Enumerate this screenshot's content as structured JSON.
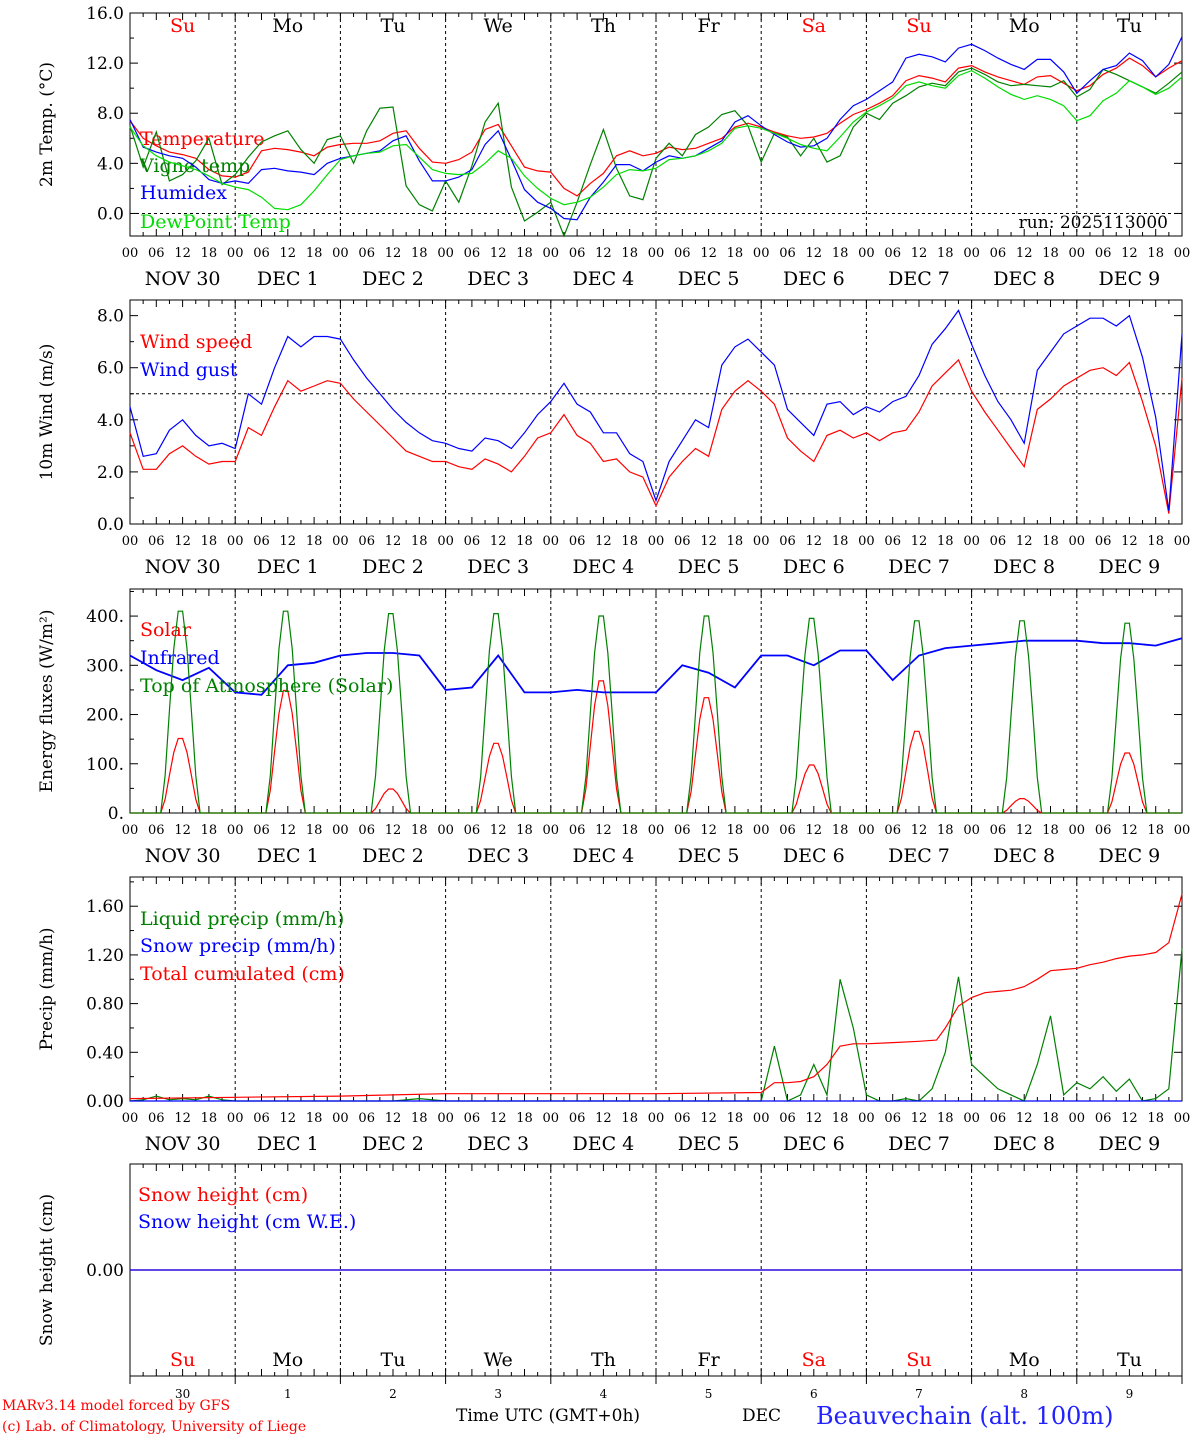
{
  "days": [
    "Su",
    "Mo",
    "Tu",
    "We",
    "Th",
    "Fr",
    "Sa",
    "Su",
    "Mo",
    "Tu"
  ],
  "weekend_days": [
    0,
    6,
    7
  ],
  "date_labels": [
    "NOV 30",
    "DEC  1",
    "DEC  2",
    "DEC  3",
    "DEC  4",
    "DEC  5",
    "DEC  6",
    "DEC  7",
    "DEC  8",
    "DEC  9"
  ],
  "hour_ticks": [
    "00",
    "06",
    "12",
    "18"
  ],
  "last_tick": "00",
  "colors": {
    "red": "#ff0000",
    "blue": "#0000ff",
    "green": "#008000",
    "lightgreen": "#00dd00",
    "axis": "#000000",
    "weekend": "#ff0000",
    "site": "#2222ff"
  },
  "footer": {
    "model": "MARv3.14 model forced by GFS",
    "lab": "(c) Lab. of Climatology, University of Liege",
    "time_axis": "Time UTC (GMT+0h)",
    "month": "DEC",
    "site": "Beauvechain (alt. 100m)",
    "bottom_dates": [
      "30",
      "1",
      "2",
      "3",
      "4",
      "5",
      "6",
      "7",
      "8",
      "9"
    ]
  },
  "chart_data": [
    {
      "id": "temp",
      "type": "line",
      "ylabel": "2m Temp. (°C)",
      "ylim": [
        -1.8,
        16.0
      ],
      "yticks": [
        0,
        4,
        8,
        12,
        16
      ],
      "ytick_labels": [
        "0.0",
        "4.0",
        "8.0",
        "12.0",
        "16.0"
      ],
      "ref_line": 0,
      "annotation": "run: 2025113000",
      "x_hours": [
        0,
        3,
        6,
        9,
        12,
        15,
        18,
        21,
        24,
        27,
        30,
        33,
        36,
        39,
        42,
        45,
        48,
        51,
        54,
        57,
        60,
        63,
        66,
        69,
        72,
        75,
        78,
        81,
        84,
        87,
        90,
        93,
        96,
        99,
        102,
        105,
        108,
        111,
        114,
        117,
        120,
        123,
        126,
        129,
        132,
        135,
        138,
        141,
        144,
        147,
        150,
        153,
        156,
        159,
        162,
        165,
        168,
        171,
        174,
        177,
        180,
        183,
        186,
        189,
        192,
        195,
        198,
        201,
        204,
        207,
        210,
        213,
        216,
        219,
        222,
        225,
        228,
        231,
        234,
        237,
        240
      ],
      "series": [
        {
          "name": "Temperature",
          "color": "red",
          "values": [
            7.4,
            6.0,
            5.4,
            4.9,
            4.7,
            4.4,
            3.5,
            3.0,
            2.9,
            3.3,
            5.0,
            5.2,
            5.1,
            4.9,
            4.6,
            5.3,
            5.5,
            5.6,
            5.6,
            5.8,
            6.4,
            6.6,
            5.2,
            4.1,
            4.0,
            4.3,
            4.9,
            6.7,
            7.1,
            5.4,
            3.7,
            3.4,
            3.3,
            2.0,
            1.4,
            2.4,
            3.2,
            4.6,
            5.0,
            4.6,
            4.8,
            5.3,
            5.1,
            5.2,
            5.6,
            6.0,
            6.9,
            7.2,
            6.9,
            6.5,
            6.2,
            6.0,
            6.1,
            6.4,
            7.2,
            7.9,
            8.3,
            8.8,
            9.4,
            10.6,
            11.0,
            10.8,
            10.5,
            11.6,
            11.8,
            11.3,
            10.9,
            10.6,
            10.3,
            10.9,
            11.0,
            10.4,
            9.8,
            10.2,
            11.1,
            11.6,
            12.4,
            11.8,
            10.9,
            11.6,
            12.2
          ]
        },
        {
          "name": "Vigne temp",
          "color": "green",
          "values": [
            7.0,
            3.7,
            6.5,
            2.6,
            3.1,
            4.2,
            6.0,
            2.3,
            3.1,
            4.5,
            5.7,
            6.2,
            6.6,
            5.1,
            4.0,
            5.9,
            6.2,
            4.0,
            6.6,
            8.4,
            8.5,
            2.2,
            0.7,
            0.2,
            2.6,
            0.9,
            3.8,
            7.3,
            8.8,
            2.1,
            -0.6,
            0.1,
            0.9,
            -2.0,
            0.9,
            3.9,
            6.7,
            3.6,
            1.4,
            1.1,
            4.4,
            5.6,
            4.6,
            6.3,
            6.9,
            7.9,
            8.2,
            7.0,
            4.1,
            6.4,
            6.1,
            4.6,
            6.0,
            4.1,
            4.6,
            6.9,
            8.0,
            7.5,
            8.8,
            9.4,
            10.1,
            10.4,
            10.2,
            11.3,
            11.6,
            11.1,
            10.5,
            10.2,
            10.3,
            10.2,
            10.1,
            10.6,
            9.3,
            9.9,
            11.5,
            11.1,
            10.6,
            10.1,
            9.6,
            10.4,
            11.3
          ]
        },
        {
          "name": "Humidex",
          "color": "blue",
          "values": [
            7.5,
            5.3,
            4.9,
            4.6,
            4.4,
            3.7,
            2.7,
            2.4,
            2.6,
            2.4,
            3.5,
            3.6,
            3.4,
            3.3,
            3.1,
            4.0,
            4.4,
            4.6,
            4.8,
            5.0,
            5.8,
            6.2,
            4.2,
            2.6,
            2.6,
            2.9,
            3.5,
            5.5,
            6.6,
            4.3,
            1.9,
            0.9,
            0.4,
            -0.4,
            -0.5,
            1.3,
            2.5,
            3.9,
            3.9,
            3.4,
            4.1,
            4.6,
            4.4,
            4.6,
            5.2,
            5.8,
            7.3,
            7.8,
            7.0,
            6.3,
            5.7,
            5.3,
            5.4,
            6.0,
            7.5,
            8.6,
            9.1,
            9.8,
            10.5,
            12.4,
            12.7,
            12.5,
            12.1,
            13.2,
            13.5,
            13.0,
            12.4,
            11.9,
            11.5,
            12.3,
            12.3,
            11.3,
            9.6,
            10.6,
            11.5,
            11.8,
            12.8,
            12.2,
            10.9,
            11.9,
            14.1
          ]
        },
        {
          "name": "DewPoint Temp",
          "color": "lightgreen",
          "values": [
            6.9,
            5.4,
            4.6,
            4.1,
            3.8,
            3.5,
            3.0,
            2.4,
            2.1,
            1.9,
            1.3,
            0.4,
            0.3,
            0.7,
            1.8,
            3.1,
            4.3,
            4.6,
            4.8,
            4.9,
            5.4,
            5.5,
            4.5,
            3.5,
            3.2,
            3.1,
            3.2,
            4.0,
            5.0,
            4.4,
            3.0,
            2.0,
            1.2,
            0.7,
            0.9,
            1.3,
            2.1,
            3.1,
            3.5,
            3.4,
            3.6,
            4.3,
            4.4,
            4.6,
            5.0,
            5.6,
            6.8,
            7.0,
            6.8,
            6.4,
            6.0,
            5.5,
            5.2,
            5.0,
            6.1,
            7.3,
            8.1,
            8.6,
            9.2,
            10.2,
            10.5,
            10.2,
            10.0,
            11.0,
            11.4,
            10.8,
            10.1,
            9.5,
            9.1,
            9.4,
            9.1,
            8.6,
            7.4,
            7.8,
            9.0,
            9.6,
            10.6,
            10.1,
            9.5,
            10.0,
            10.9
          ]
        }
      ]
    },
    {
      "id": "wind",
      "type": "line",
      "ylabel": "10m Wind (m/s)",
      "ylim": [
        0,
        8.6
      ],
      "yticks": [
        0,
        2,
        4,
        6,
        8
      ],
      "ytick_labels": [
        "0.0",
        "2.0",
        "4.0",
        "6.0",
        "8.0"
      ],
      "ref_line": 5,
      "x_hours": [
        0,
        3,
        6,
        9,
        12,
        15,
        18,
        21,
        24,
        27,
        30,
        33,
        36,
        39,
        42,
        45,
        48,
        51,
        54,
        57,
        60,
        63,
        66,
        69,
        72,
        75,
        78,
        81,
        84,
        87,
        90,
        93,
        96,
        99,
        102,
        105,
        108,
        111,
        114,
        117,
        120,
        123,
        126,
        129,
        132,
        135,
        138,
        141,
        144,
        147,
        150,
        153,
        156,
        159,
        162,
        165,
        168,
        171,
        174,
        177,
        180,
        183,
        186,
        189,
        192,
        195,
        198,
        201,
        204,
        207,
        210,
        213,
        216,
        219,
        222,
        225,
        228,
        231,
        234,
        237,
        240
      ],
      "series": [
        {
          "name": "Wind speed",
          "color": "red",
          "values": [
            3.5,
            2.1,
            2.1,
            2.7,
            3.0,
            2.6,
            2.3,
            2.4,
            2.4,
            3.7,
            3.4,
            4.5,
            5.5,
            5.1,
            5.3,
            5.5,
            5.4,
            4.8,
            4.3,
            3.8,
            3.3,
            2.8,
            2.6,
            2.4,
            2.4,
            2.2,
            2.1,
            2.5,
            2.3,
            2.0,
            2.6,
            3.3,
            3.5,
            4.2,
            3.4,
            3.1,
            2.4,
            2.5,
            2.0,
            1.8,
            0.7,
            1.8,
            2.4,
            2.9,
            2.6,
            4.4,
            5.1,
            5.5,
            5.1,
            4.6,
            3.3,
            2.8,
            2.4,
            3.4,
            3.6,
            3.3,
            3.5,
            3.2,
            3.5,
            3.6,
            4.3,
            5.3,
            5.8,
            6.3,
            5.1,
            4.3,
            3.6,
            2.9,
            2.2,
            4.4,
            4.8,
            5.3,
            5.6,
            5.9,
            6.0,
            5.7,
            6.2,
            4.7,
            3.0,
            0.4,
            5.6
          ]
        },
        {
          "name": "Wind gust",
          "color": "blue",
          "values": [
            4.5,
            2.6,
            2.7,
            3.6,
            4.0,
            3.4,
            3.0,
            3.1,
            2.9,
            5.0,
            4.6,
            6.0,
            7.2,
            6.8,
            7.2,
            7.2,
            7.1,
            6.3,
            5.6,
            5.0,
            4.4,
            3.9,
            3.5,
            3.2,
            3.1,
            2.9,
            2.8,
            3.3,
            3.2,
            2.9,
            3.5,
            4.2,
            4.7,
            5.4,
            4.6,
            4.3,
            3.5,
            3.5,
            2.7,
            2.4,
            0.9,
            2.4,
            3.2,
            4.0,
            3.7,
            6.1,
            6.8,
            7.1,
            6.6,
            6.1,
            4.4,
            3.9,
            3.4,
            4.6,
            4.7,
            4.2,
            4.5,
            4.3,
            4.7,
            4.9,
            5.7,
            6.9,
            7.5,
            8.2,
            6.9,
            5.7,
            4.7,
            4.0,
            3.1,
            5.9,
            6.6,
            7.3,
            7.6,
            7.9,
            7.9,
            7.6,
            8.0,
            6.4,
            4.1,
            0.5,
            7.3
          ]
        }
      ]
    },
    {
      "id": "energy",
      "type": "line",
      "ylabel": "Energy fluxes (W/m²)",
      "ylim": [
        0,
        455
      ],
      "yticks": [
        0,
        100,
        200,
        300,
        400
      ],
      "ytick_labels": [
        "0.",
        "100.",
        "200.",
        "300.",
        "400."
      ],
      "series": [
        {
          "name": "Solar",
          "color": "red",
          "peaks": [
            155,
            255,
            50,
            145,
            275,
            240,
            100,
            170,
            30,
            125
          ]
        },
        {
          "name": "Infrared",
          "color": "blue",
          "x_hours": [
            0,
            6,
            12,
            18,
            24,
            30,
            36,
            42,
            48,
            54,
            60,
            66,
            72,
            78,
            84,
            90,
            96,
            102,
            108,
            114,
            120,
            126,
            132,
            138,
            144,
            150,
            156,
            162,
            168,
            174,
            180,
            186,
            192,
            198,
            204,
            210,
            216,
            222,
            228,
            234,
            240
          ],
          "values": [
            320,
            290,
            270,
            295,
            245,
            240,
            300,
            305,
            320,
            325,
            325,
            320,
            250,
            255,
            320,
            245,
            245,
            250,
            245,
            245,
            245,
            300,
            285,
            255,
            320,
            320,
            300,
            330,
            330,
            270,
            320,
            335,
            340,
            345,
            350,
            350,
            350,
            345,
            345,
            340,
            355
          ]
        },
        {
          "name": "Top of Atmosphere (Solar)",
          "color": "green",
          "peaks": [
            420,
            420,
            415,
            415,
            410,
            410,
            405,
            400,
            400,
            395
          ]
        }
      ]
    },
    {
      "id": "precip",
      "type": "line",
      "ylabel": "Precip (mm/h)",
      "ylim": [
        0,
        1.84
      ],
      "yticks": [
        0,
        0.4,
        0.8,
        1.2,
        1.6
      ],
      "ytick_labels": [
        "0.00",
        "0.40",
        "0.80",
        "1.20",
        "1.60"
      ],
      "series": [
        {
          "name": "Liquid precip (mm/h)",
          "color": "green",
          "x_hours": [
            0,
            3,
            6,
            9,
            12,
            15,
            18,
            21,
            24,
            60,
            66,
            72,
            99,
            108,
            144,
            147,
            150,
            153,
            156,
            159,
            162,
            165,
            168,
            171,
            174,
            177,
            180,
            183,
            186,
            189,
            192,
            195,
            198,
            201,
            204,
            207,
            210,
            213,
            216,
            219,
            222,
            225,
            228,
            231,
            234,
            237,
            240
          ],
          "values": [
            0,
            0.01,
            0.04,
            0.01,
            0.02,
            0.01,
            0.04,
            0.01,
            0,
            0,
            0.02,
            0,
            0,
            0,
            0,
            0.45,
            0,
            0.05,
            0.3,
            0.05,
            1.0,
            0.6,
            0.05,
            0,
            0,
            0.02,
            0,
            0.1,
            0.4,
            1.02,
            0.3,
            0.2,
            0.1,
            0.05,
            0,
            0.3,
            0.7,
            0.05,
            0.15,
            0.1,
            0.2,
            0.08,
            0.18,
            0,
            0.02,
            0.1,
            1.25
          ]
        },
        {
          "name": "Snow precip (mm/h)",
          "color": "blue",
          "x_hours": [
            0,
            240
          ],
          "values": [
            0,
            0
          ]
        },
        {
          "name": "Total cumulated (cm)",
          "color": "red",
          "x_hours": [
            0,
            24,
            48,
            60,
            72,
            96,
            120,
            144,
            147,
            150,
            153,
            156,
            159,
            162,
            165,
            168,
            174,
            180,
            184,
            186,
            189,
            192,
            195,
            198,
            201,
            204,
            207,
            210,
            213,
            216,
            219,
            222,
            225,
            228,
            231,
            234,
            237,
            240
          ],
          "values": [
            0.02,
            0.03,
            0.04,
            0.05,
            0.06,
            0.06,
            0.06,
            0.07,
            0.15,
            0.15,
            0.16,
            0.2,
            0.3,
            0.45,
            0.47,
            0.47,
            0.48,
            0.49,
            0.5,
            0.6,
            0.78,
            0.85,
            0.89,
            0.9,
            0.91,
            0.94,
            1.0,
            1.07,
            1.08,
            1.09,
            1.12,
            1.14,
            1.17,
            1.19,
            1.2,
            1.22,
            1.3,
            1.7
          ]
        }
      ]
    },
    {
      "id": "snow",
      "type": "line",
      "ylabel": "Snow height (cm)",
      "ylim": [
        -1,
        1
      ],
      "yticks": [
        0
      ],
      "ytick_labels": [
        "0.00"
      ],
      "series": [
        {
          "name": "Snow height (cm)",
          "color": "red",
          "x_hours": [
            0,
            240
          ],
          "values": [
            0,
            0
          ]
        },
        {
          "name": "Snow height (cm W.E.)",
          "color": "blue",
          "x_hours": [
            0,
            240
          ],
          "values": [
            0,
            0
          ]
        }
      ]
    }
  ]
}
